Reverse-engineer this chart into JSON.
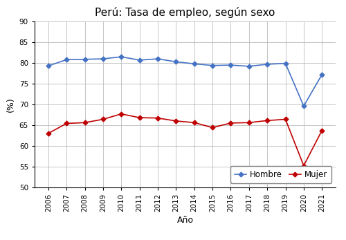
{
  "title": "Perú: Tasa de empleo, según sexo",
  "xlabel": "Año",
  "ylabel": "(%)",
  "years": [
    2006,
    2007,
    2008,
    2009,
    2010,
    2011,
    2012,
    2013,
    2014,
    2015,
    2016,
    2017,
    2018,
    2019,
    2020,
    2021
  ],
  "hombre": [
    79.3,
    80.8,
    80.9,
    81.0,
    81.5,
    80.7,
    81.0,
    80.3,
    79.8,
    79.4,
    79.5,
    79.2,
    79.7,
    79.9,
    69.6,
    77.2
  ],
  "mujer": [
    63.0,
    65.4,
    65.6,
    66.4,
    67.7,
    66.8,
    66.7,
    66.0,
    65.6,
    64.4,
    65.5,
    65.6,
    66.1,
    66.4,
    55.2,
    63.7
  ],
  "hombre_color": "#4472C4",
  "mujer_color": "#C00000",
  "background_color": "#FFFFFF",
  "grid_color": "#BBBBBB",
  "ylim": [
    50,
    90
  ],
  "yticks": [
    50,
    55,
    60,
    65,
    70,
    75,
    80,
    85,
    90
  ],
  "title_fontsize": 11,
  "axis_label_fontsize": 9,
  "tick_fontsize": 7.5,
  "legend_fontsize": 8.5
}
